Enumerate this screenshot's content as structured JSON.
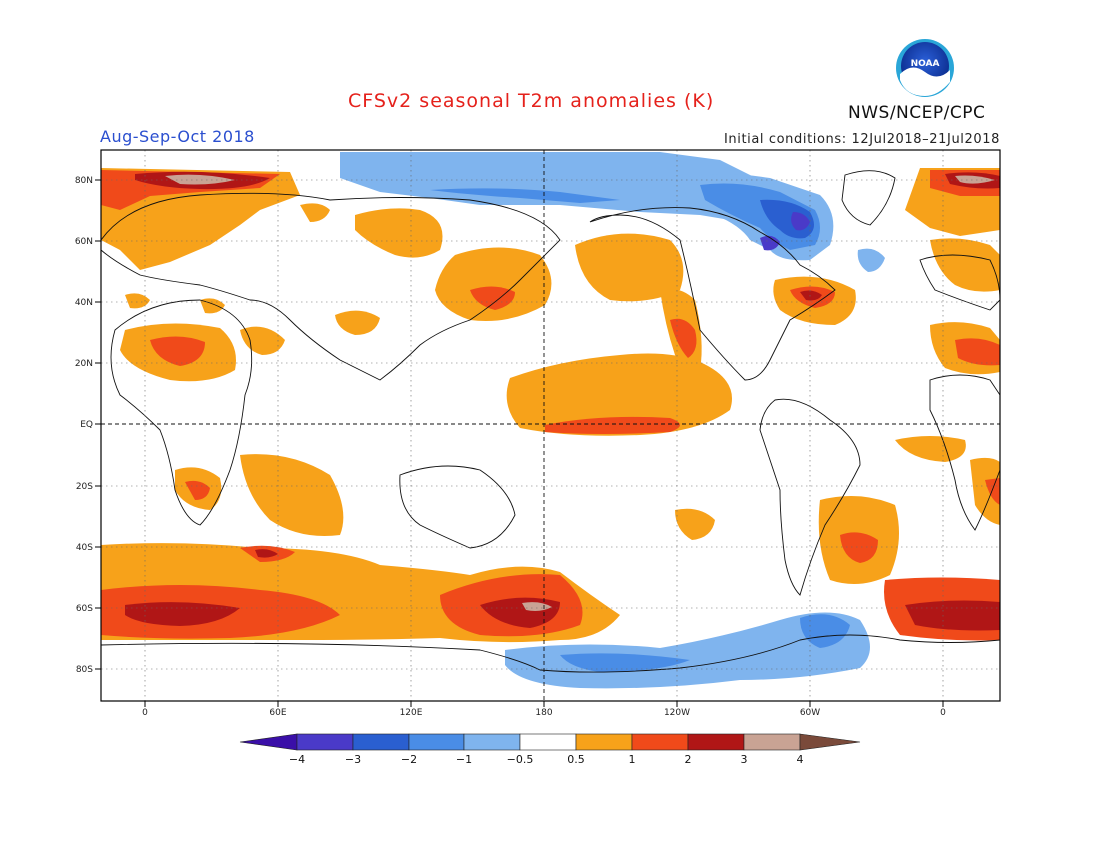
{
  "header": {
    "title": "CFSv2 seasonal T2m anomalies (K)",
    "agency": "NWS/NCEP/CPC",
    "period": "Aug-Sep-Oct 2018",
    "initial_conditions": "Initial conditions: 12Jul2018–21Jul2018",
    "logo_text": "NOAA"
  },
  "map": {
    "lat_ticks": [
      "80N",
      "60N",
      "40N",
      "20N",
      "EQ",
      "20S",
      "40S",
      "60S",
      "80S"
    ],
    "lon_ticks": [
      "0",
      "60E",
      "120E",
      "180",
      "120W",
      "60W",
      "0"
    ],
    "grid": true,
    "projection": "cylindrical equidistant"
  },
  "colorbar": {
    "labels": [
      "−4",
      "−3",
      "−2",
      "−1",
      "−0.5",
      "0.5",
      "1",
      "2",
      "3",
      "4"
    ],
    "colors": [
      "#3a0fa8",
      "#4a3ac8",
      "#2a5fd0",
      "#4a8de6",
      "#7fb4ee",
      "#ffffff",
      "#f7a21a",
      "#f04a1a",
      "#b01616",
      "#c9a394",
      "#7a4a3a"
    ]
  },
  "colors": {
    "warm_weak": "#f7a21a",
    "warm_mid": "#f04a1a",
    "warm_strong": "#b01616",
    "warm_extreme": "#c9a394",
    "cold_weak": "#7fb4ee",
    "cold_mid": "#4a8de6",
    "cold_strong": "#2a5fd0",
    "cold_extreme": "#4a3ac8"
  }
}
